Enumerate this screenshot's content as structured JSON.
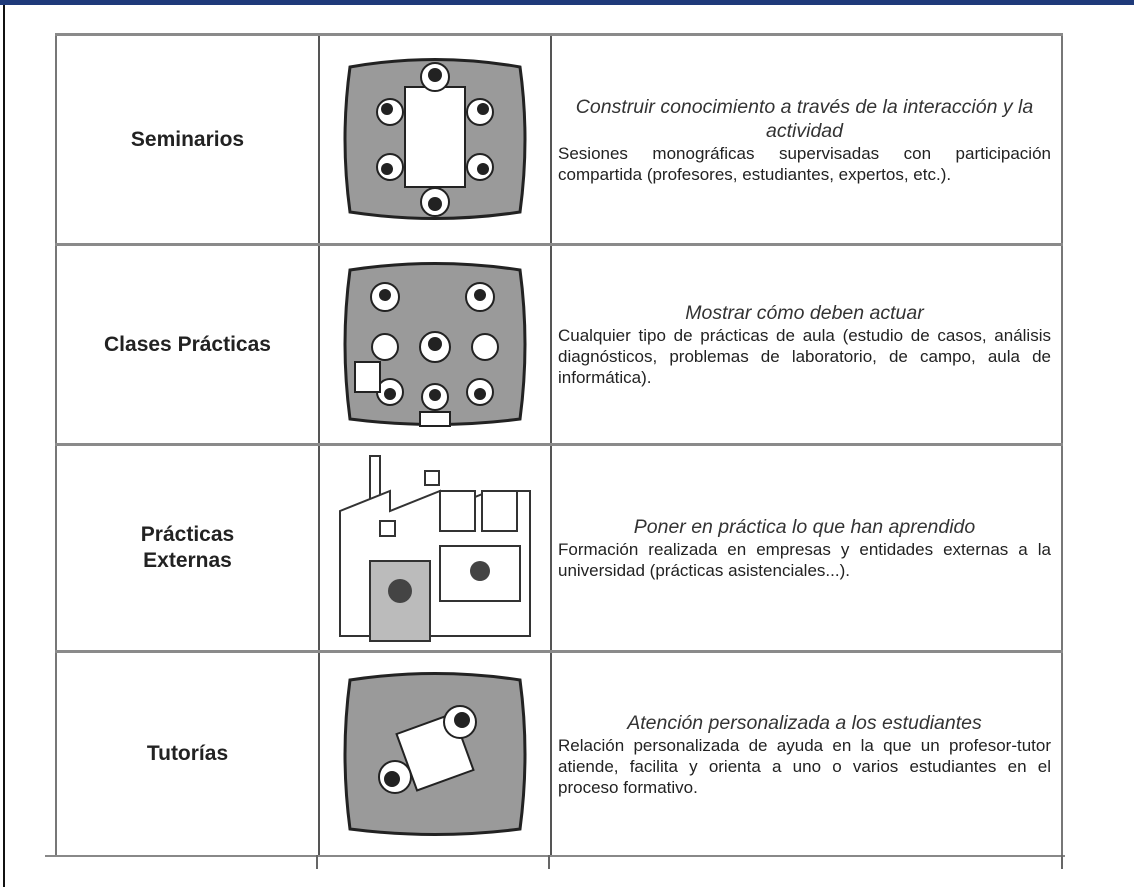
{
  "table": {
    "rows": [
      {
        "label": "Seminarios",
        "heading": "Construir conocimiento a través de la interacción y la actividad",
        "text": "Sesiones monográficas supervisadas con participación compartida (profesores, estudiantes, expertos, etc.)."
      },
      {
        "label": "Clases Prácticas",
        "heading": "Mostrar cómo deben actuar",
        "text": "Cualquier tipo de prácticas de aula (estudio de casos, análisis diagnósticos, problemas de laboratorio, de campo, aula de informática)."
      },
      {
        "label": "Prácticas Externas",
        "heading": "Poner en práctica lo que han aprendido",
        "text": "Formación realizada en empresas y entidades externas a la universidad (prácticas asistenciales...)."
      },
      {
        "label": "Tutorías",
        "heading": "Atención personalizada a los estudiantes",
        "text": "Relación personalizada de ayuda en la que un profesor-tutor atiende, facilita y orienta a uno o varios estudiantes en el proceso formativo."
      }
    ]
  }
}
